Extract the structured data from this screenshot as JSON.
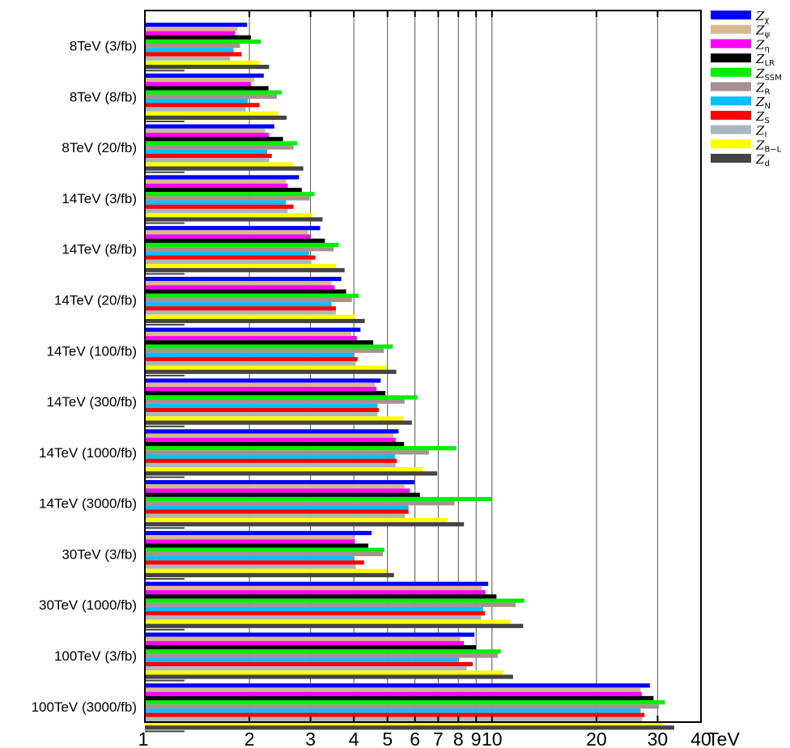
{
  "chart_data": {
    "type": "bar",
    "orientation": "horizontal",
    "x_scale": "log",
    "xlim": [
      1,
      40
    ],
    "xunit": "TeV",
    "xticks": [
      1,
      2,
      3,
      4,
      5,
      6,
      7,
      8,
      9,
      10,
      20,
      30,
      40
    ],
    "xtick_labels": [
      "1",
      "2",
      "3",
      "4",
      "5",
      "6",
      "7",
      "8",
      "9",
      "10",
      "20",
      "30",
      "40"
    ],
    "grid": "vertical lines at ticks",
    "legend_position": "right",
    "categories": [
      "8TeV (3/fb)",
      "8TeV (8/fb)",
      "8TeV (20/fb)",
      "14TeV (3/fb)",
      "14TeV (8/fb)",
      "14TeV (20/fb)",
      "14TeV (100/fb)",
      "14TeV (300/fb)",
      "14TeV (1000/fb)",
      "14TeV (3000/fb)",
      "30TeV (3/fb)",
      "30TeV (1000/fb)",
      "100TeV (3/fb)",
      "100TeV (3000/fb)"
    ],
    "series": [
      {
        "name": "Z_χ",
        "sym": "Z",
        "sub": "χ",
        "color": "#0000ff",
        "values": [
          1.97,
          2.2,
          2.36,
          2.78,
          3.2,
          3.68,
          4.18,
          4.78,
          5.38,
          5.98,
          4.5,
          9.75,
          8.9,
          28.5
        ]
      },
      {
        "name": "Z_ψ",
        "sym": "Z",
        "sub": "ψ",
        "color": "#d9b98c",
        "values": [
          1.85,
          2.07,
          2.22,
          2.55,
          2.95,
          3.45,
          3.93,
          4.6,
          5.2,
          5.6,
          3.98,
          9.35,
          8.1,
          26.8
        ]
      },
      {
        "name": "Z_η",
        "sym": "Z",
        "sub": "η",
        "color": "#ff00ff",
        "values": [
          1.82,
          2.02,
          2.28,
          2.58,
          3.0,
          3.52,
          4.08,
          4.65,
          5.28,
          5.8,
          4.03,
          9.58,
          8.3,
          27.0
        ]
      },
      {
        "name": "Z_LR",
        "sym": "Z",
        "sub": "LR",
        "color": "#000000",
        "values": [
          2.02,
          2.27,
          2.5,
          2.83,
          3.3,
          3.8,
          4.55,
          4.93,
          5.58,
          6.2,
          4.4,
          10.3,
          9.0,
          29.2
        ]
      },
      {
        "name": "Z_SSM",
        "sym": "Z",
        "sub": "SSM",
        "color": "#00ee00",
        "values": [
          2.16,
          2.48,
          2.75,
          3.08,
          3.62,
          4.13,
          5.18,
          6.1,
          7.9,
          10.0,
          4.9,
          12.4,
          10.6,
          31.5
        ]
      },
      {
        "name": "Z_R",
        "sym": "Z",
        "sub": "R",
        "color": "#a89090",
        "values": [
          1.88,
          2.4,
          2.68,
          2.98,
          3.5,
          3.95,
          4.88,
          5.6,
          6.58,
          7.8,
          4.85,
          11.7,
          10.4,
          30.3
        ]
      },
      {
        "name": "Z_N",
        "sym": "Z",
        "sub": "N",
        "color": "#00bfff",
        "values": [
          1.8,
          1.98,
          2.25,
          2.55,
          2.97,
          3.45,
          4.0,
          4.68,
          5.25,
          5.75,
          4.0,
          9.42,
          8.0,
          26.8
        ]
      },
      {
        "name": "Z_S",
        "sym": "Z",
        "sub": "S",
        "color": "#ff0000",
        "values": [
          1.9,
          2.14,
          2.32,
          2.68,
          3.1,
          3.55,
          4.1,
          4.72,
          5.32,
          5.75,
          4.28,
          9.55,
          8.8,
          27.5
        ]
      },
      {
        "name": "Z_I",
        "sym": "Z",
        "sub": "I",
        "color": "#a8b8c0",
        "values": [
          1.76,
          1.95,
          2.28,
          2.58,
          3.02,
          3.55,
          4.05,
          4.68,
          5.28,
          5.62,
          4.05,
          9.3,
          8.45,
          27.1
        ]
      },
      {
        "name": "Z_B-L",
        "sym": "Z",
        "sub": "B−L",
        "color": "#ffff00",
        "values": [
          2.14,
          2.42,
          2.68,
          3.04,
          3.55,
          4.03,
          4.98,
          5.55,
          6.33,
          7.45,
          4.98,
          11.3,
          10.8,
          31.0
        ]
      },
      {
        "name": "Z_d",
        "sym": "Z",
        "sub": "d",
        "color": "#444444",
        "values": [
          2.28,
          2.56,
          2.86,
          3.25,
          3.76,
          4.3,
          5.3,
          5.88,
          6.95,
          8.3,
          5.22,
          12.3,
          11.5,
          33.5
        ]
      }
    ],
    "reference_marker": {
      "color": "#444444",
      "value": 1.3
    }
  }
}
